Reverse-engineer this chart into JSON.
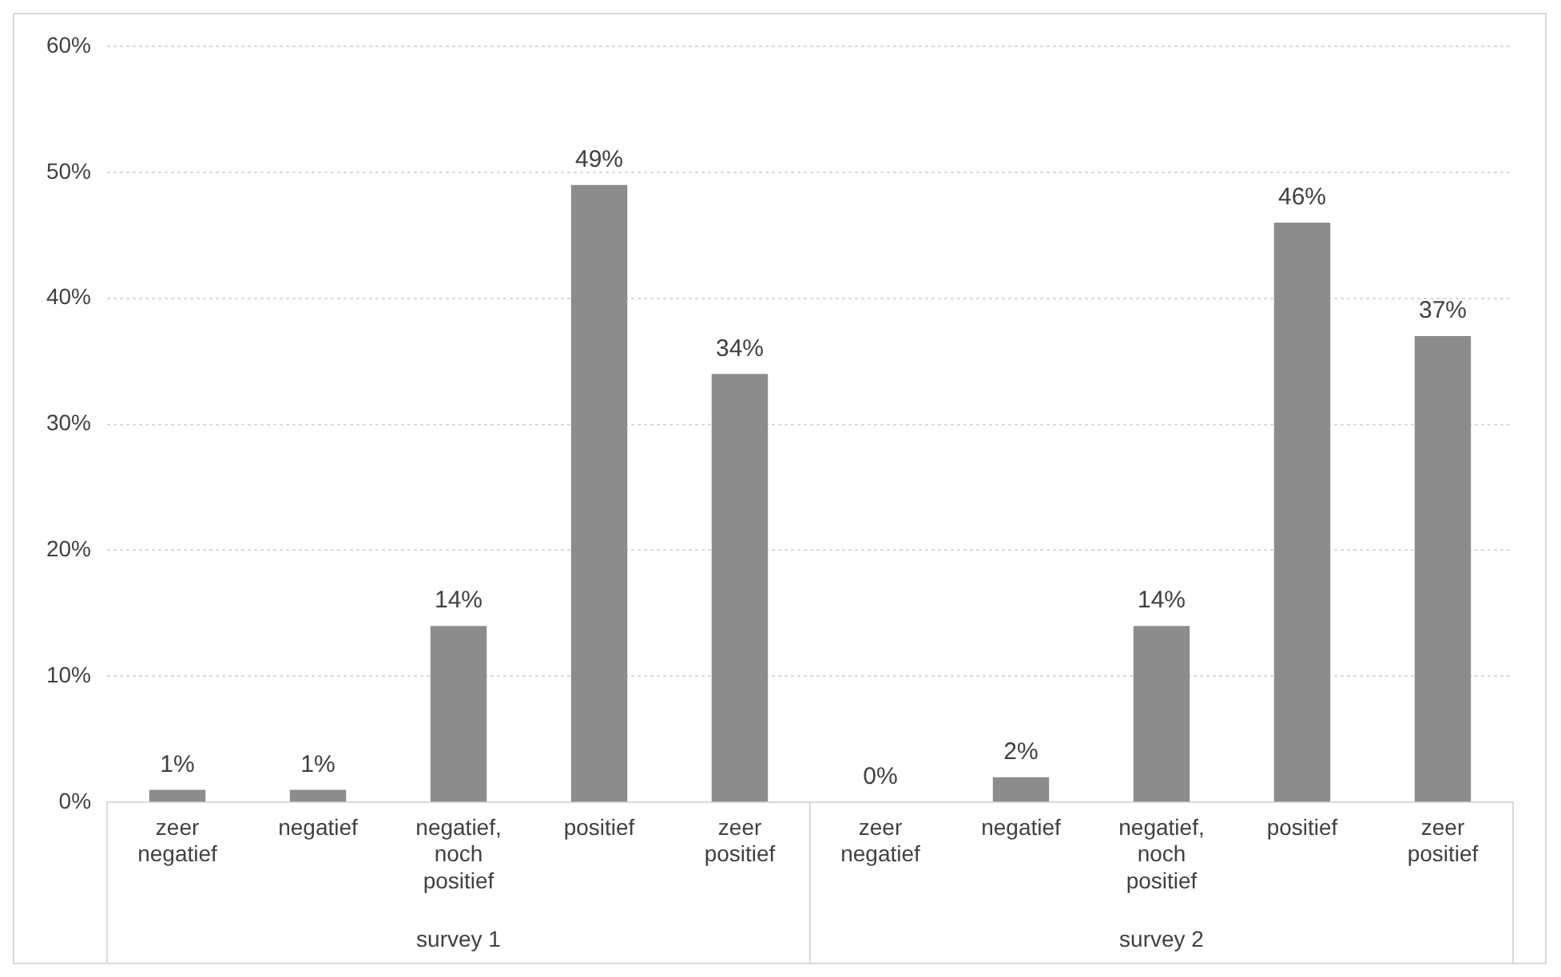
{
  "chart_data": {
    "type": "bar",
    "categories": [
      "zeer negatief",
      "negatief",
      "negatief, noch positief",
      "positief",
      "zeer positief",
      "zeer negatief",
      "negatief",
      "negatief, noch positief",
      "positief",
      "zeer positief"
    ],
    "values": [
      1,
      1,
      14,
      49,
      34,
      0,
      2,
      14,
      46,
      37
    ],
    "value_labels": [
      "1%",
      "1%",
      "14%",
      "49%",
      "34%",
      "0%",
      "2%",
      "14%",
      "46%",
      "37%"
    ],
    "color": "#8c8c8c",
    "ylim": [
      0,
      60
    ],
    "yticks": [
      {
        "value": 0,
        "label": "0%"
      },
      {
        "value": 10,
        "label": "10%"
      },
      {
        "value": 20,
        "label": "20%"
      },
      {
        "value": 30,
        "label": "30%"
      },
      {
        "value": 40,
        "label": "40%"
      },
      {
        "value": 50,
        "label": "50%"
      },
      {
        "value": 60,
        "label": "60%"
      }
    ],
    "grid": "y",
    "legend": false,
    "annotations": [
      "survey 1",
      "survey 2"
    ]
  }
}
